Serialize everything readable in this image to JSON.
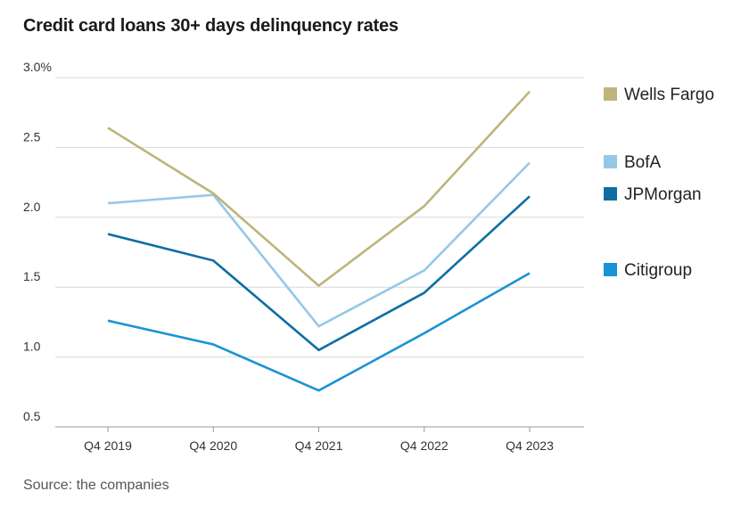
{
  "title": "Credit card loans 30+ days delinquency rates",
  "source": "Source: the companies",
  "colors": {
    "Wells Fargo": "#bdb57a",
    "BofA": "#95c8e8",
    "JPMorgan": "#0e6ea3",
    "Citigroup": "#1a93d3",
    "grid": "#d9d9d9",
    "axis": "#999999"
  },
  "chart_data": {
    "type": "line",
    "title": "Credit card loans 30+ days delinquency rates",
    "categories": [
      "Q4 2019",
      "Q4 2020",
      "Q4 2021",
      "Q4 2022",
      "Q4 2023"
    ],
    "ylim": [
      0.5,
      3.0
    ],
    "yticks": [
      0.5,
      1.0,
      1.5,
      2.0,
      2.5,
      3.0
    ],
    "ytick_labels": [
      "0.5",
      "1.0",
      "1.5",
      "2.0",
      "2.5",
      "3.0%"
    ],
    "grid": true,
    "legend_position": "right",
    "series": [
      {
        "name": "Wells Fargo",
        "values": [
          2.64,
          2.17,
          1.51,
          2.08,
          2.9
        ]
      },
      {
        "name": "BofA",
        "values": [
          2.1,
          2.16,
          1.22,
          1.62,
          2.39
        ]
      },
      {
        "name": "JPMorgan",
        "values": [
          1.88,
          1.69,
          1.05,
          1.46,
          2.15
        ]
      },
      {
        "name": "Citigroup",
        "values": [
          1.26,
          1.09,
          0.76,
          1.17,
          1.6
        ]
      }
    ]
  }
}
